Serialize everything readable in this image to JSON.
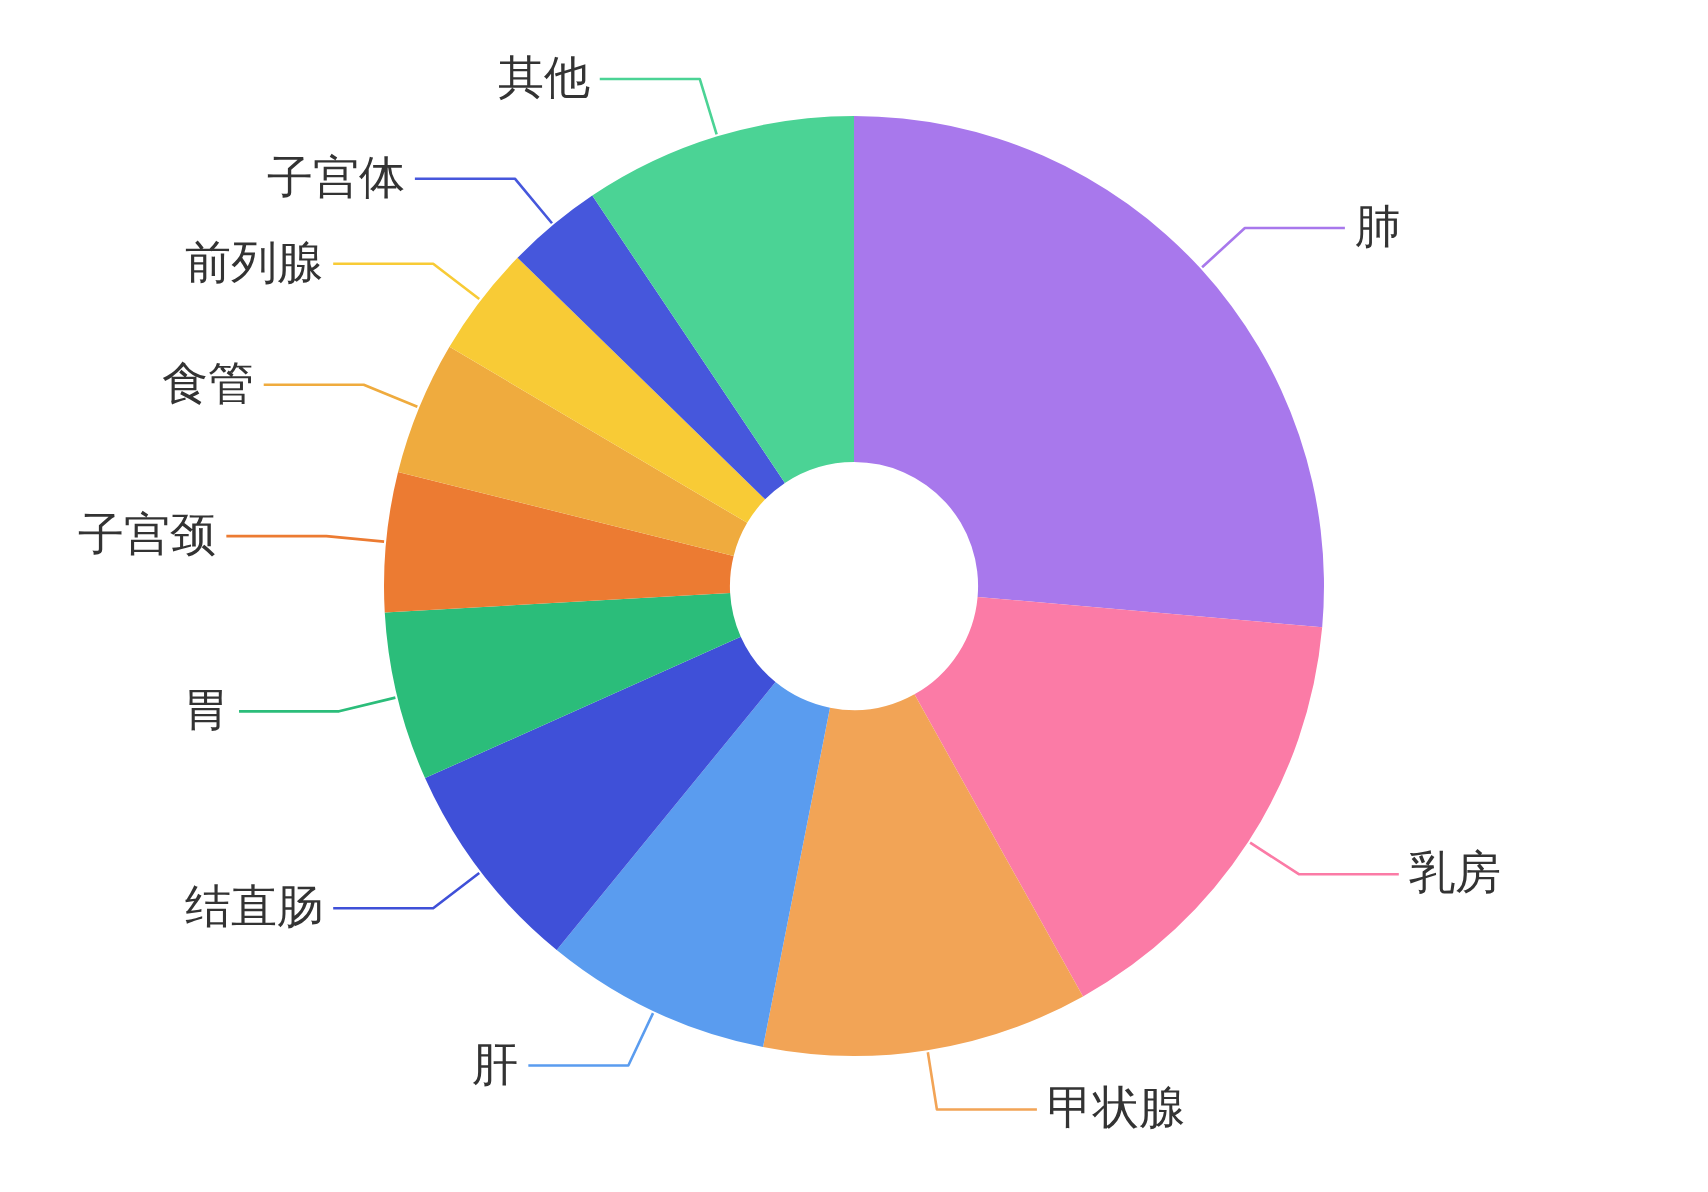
{
  "chart_data": {
    "type": "donut",
    "categories": [
      "肺",
      "乳房",
      "甲状腺",
      "肝",
      "结直肠",
      "胃",
      "子宫颈",
      "食管",
      "前列腺",
      "子宫体",
      "其他"
    ],
    "values": [
      26.4,
      15.5,
      11.2,
      7.8,
      7.4,
      5.8,
      4.8,
      4.6,
      3.8,
      3.3,
      9.4
    ],
    "colors": [
      "#a878ec",
      "#fb7ba6",
      "#f2a456",
      "#5a9cef",
      "#3f50d8",
      "#2bbd7a",
      "#ec7b32",
      "#efab3e",
      "#f8cb36",
      "#4657dc",
      "#4bd395"
    ]
  }
}
